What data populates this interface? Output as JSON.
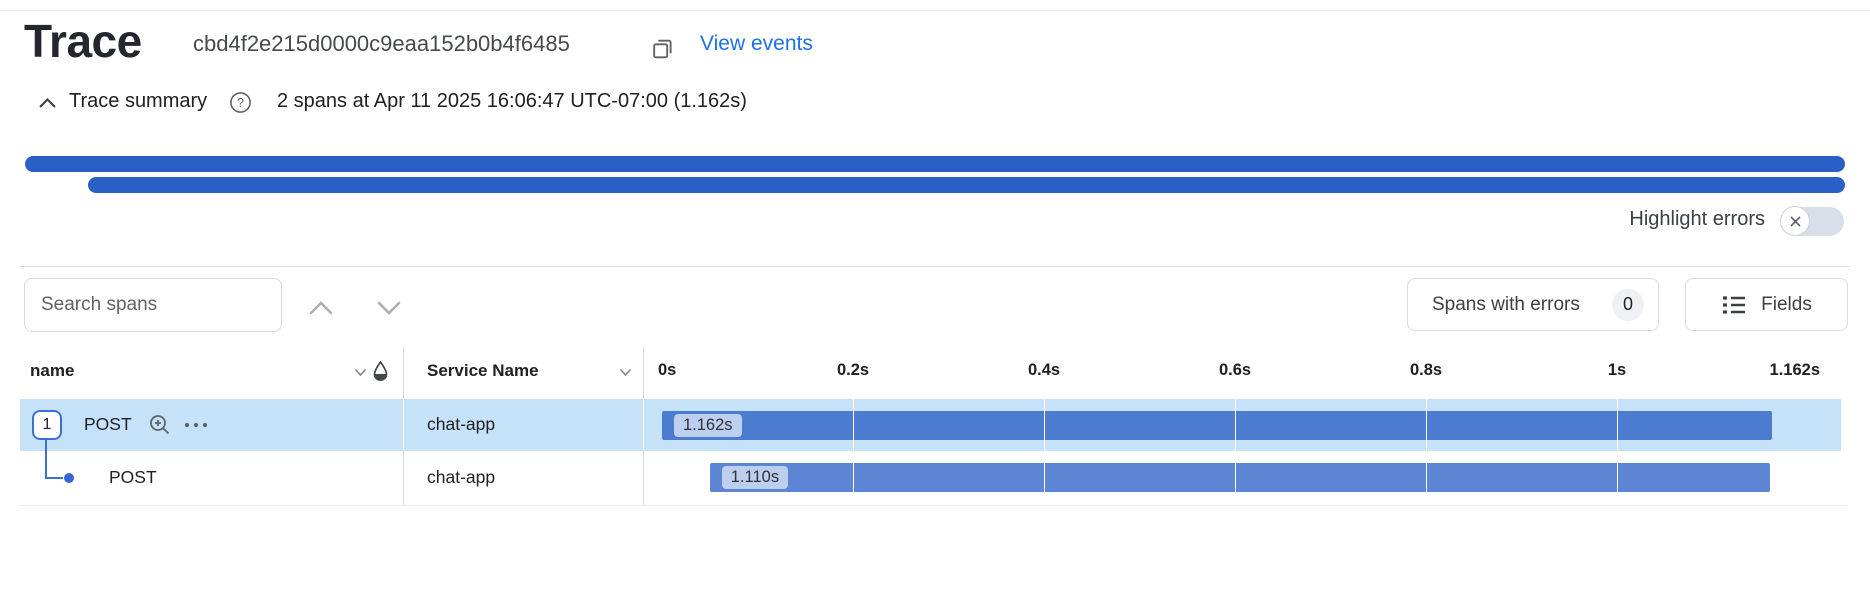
{
  "header": {
    "title": "Trace",
    "trace_id": "cbd4f2e215d0000c9eaa152b0b4f6485",
    "view_events_label": "View events"
  },
  "summary": {
    "label": "Trace summary",
    "info": "2 spans at Apr 11 2025 16:06:47 UTC-07:00 (1.162s)"
  },
  "controls": {
    "highlight_errors_label": "Highlight errors",
    "highlight_errors_on": false,
    "search_placeholder": "Search spans",
    "spans_with_errors_label": "Spans with errors",
    "spans_with_errors_count": "0",
    "fields_label": "Fields"
  },
  "table": {
    "columns": {
      "name": "name",
      "service": "Service Name"
    },
    "axis": {
      "ticks": [
        "0s",
        "0.2s",
        "0.4s",
        "0.6s",
        "0.8s",
        "1s"
      ],
      "tick_interval_s": 0.2,
      "end_label": "1.162s",
      "total_s": 1.162
    },
    "rows": [
      {
        "badge": "1",
        "name": "POST",
        "service": "chat-app",
        "duration_label": "1.162s",
        "start_s": 0,
        "duration_s": 1.162,
        "selected": true
      },
      {
        "name": "POST",
        "service": "chat-app",
        "duration_label": "1.110s",
        "start_s": 0.05,
        "duration_s": 1.11,
        "selected": false
      }
    ]
  },
  "colors": {
    "minimap_bar": "#2a60c6",
    "row_highlight": "#c6e2f8",
    "span_bar_root": "#4b7ccf",
    "span_bar_child": "#5c85d3",
    "link_blue": "#1a73e8",
    "border_gray": "#dadce0"
  }
}
